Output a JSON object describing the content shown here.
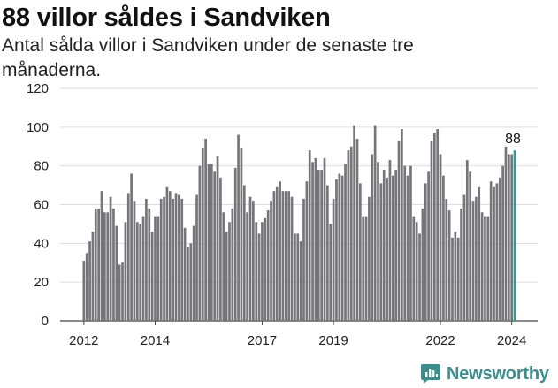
{
  "chart_data": {
    "type": "bar",
    "title": "88 villor såldes i Sandviken",
    "subtitle": "Antal sålda villor i Sandviken under de senaste tre månaderna.",
    "ylim": [
      0,
      120
    ],
    "y_ticks": [
      "0",
      "20",
      "40",
      "60",
      "80",
      "100",
      "120"
    ],
    "x_ticks": [
      {
        "label": "2012",
        "index": 0
      },
      {
        "label": "2014",
        "index": 24
      },
      {
        "label": "2017",
        "index": 60
      },
      {
        "label": "2019",
        "index": 84
      },
      {
        "label": "2022",
        "index": 120
      },
      {
        "label": "2024",
        "index": 144
      }
    ],
    "values": [
      31,
      35,
      41,
      46,
      58,
      58,
      67,
      56,
      56,
      64,
      58,
      49,
      29,
      30,
      51,
      66,
      76,
      62,
      51,
      50,
      54,
      63,
      58,
      46,
      54,
      54,
      63,
      64,
      69,
      67,
      63,
      66,
      65,
      63,
      48,
      38,
      40,
      49,
      65,
      80,
      89,
      94,
      81,
      81,
      77,
      85,
      74,
      56,
      46,
      51,
      58,
      79,
      96,
      89,
      70,
      56,
      64,
      62,
      51,
      45,
      51,
      53,
      57,
      62,
      67,
      69,
      72,
      67,
      67,
      67,
      64,
      45,
      45,
      41,
      63,
      72,
      88,
      82,
      84,
      78,
      78,
      84,
      70,
      50,
      63,
      73,
      76,
      75,
      81,
      88,
      90,
      101,
      94,
      71,
      54,
      54,
      64,
      86,
      101,
      82,
      71,
      78,
      74,
      83,
      75,
      78,
      93,
      99,
      80,
      75,
      80,
      54,
      51,
      45,
      58,
      71,
      77,
      93,
      97,
      99,
      86,
      75,
      63,
      57,
      43,
      46,
      43,
      58,
      65,
      83,
      77,
      62,
      64,
      69,
      56,
      54,
      54,
      72,
      69,
      71,
      74,
      80,
      90,
      86,
      86,
      88
    ],
    "highlight_color": "#2a9d99",
    "bar_color": "#75757a",
    "annotation": "88"
  },
  "brand": {
    "name": "Newsworthy",
    "color": "#3a8f8c"
  }
}
